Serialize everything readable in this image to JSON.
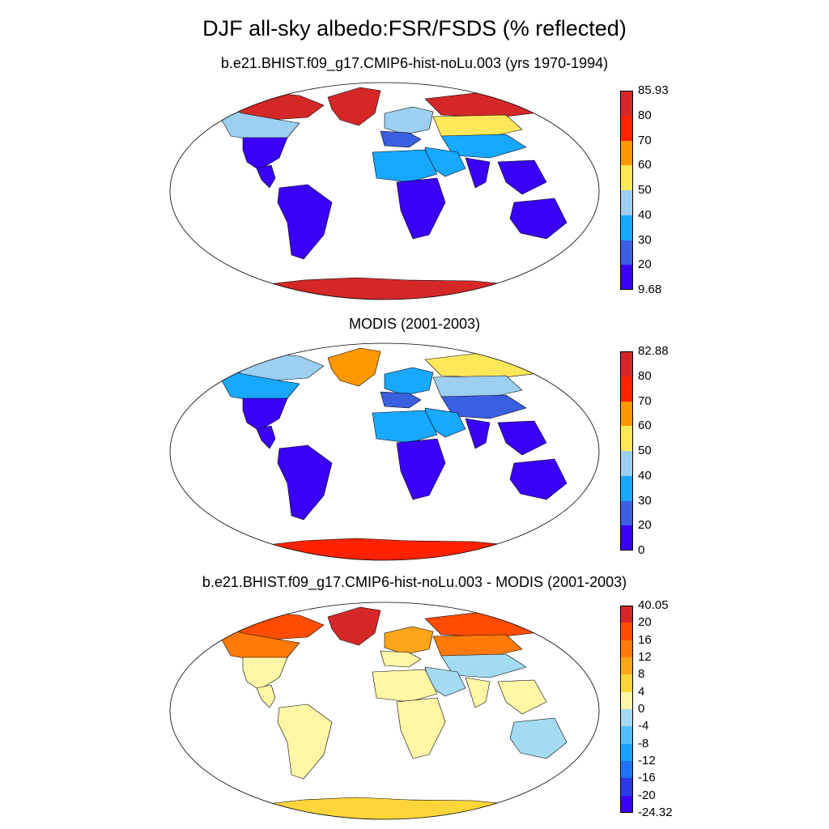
{
  "title": "DJF all-sky albedo:FSR/FSDS (% reflected)",
  "colors": {
    "abs_scale": [
      "#3a00f5",
      "#3a5fe0",
      "#18a8ff",
      "#9ccff0",
      "#ffe75a",
      "#ff9800",
      "#ff2200",
      "#d42828"
    ],
    "diff_scale": [
      "#3a00f5",
      "#2b39e6",
      "#1f74f5",
      "#1ba3ff",
      "#4fbfff",
      "#a3dbf2",
      "#fff6a6",
      "#ffd63a",
      "#ffa51a",
      "#ff7a0a",
      "#ff4c00",
      "#d42828"
    ],
    "land_outline": "#000000",
    "map_border": "#000000"
  },
  "panels": [
    {
      "subtitle": "b.e21.BHIST.f09_g17.CMIP6-hist-noLu.003 (yrs 1970-1994)",
      "scale": "abs_scale",
      "colorbar_labels": [
        "85.93",
        "80",
        "70",
        "60",
        "50",
        "40",
        "30",
        "20",
        "9.68"
      ],
      "regions": {
        "greenland": 7,
        "arctic_canada": 7,
        "north_america_north": 3,
        "north_america_south": 0,
        "central_america": 0,
        "south_america": 0,
        "europe_north": 3,
        "europe_south": 1,
        "russia_north": 7,
        "russia_south": 4,
        "central_asia": 2,
        "middle_east": 2,
        "africa_north": 2,
        "africa_south": 0,
        "india": 0,
        "southeast_asia": 0,
        "australia": 0,
        "antarctica": 7
      }
    },
    {
      "subtitle": "MODIS (2001-2003)",
      "scale": "abs_scale",
      "colorbar_labels": [
        "82.88",
        "80",
        "70",
        "60",
        "50",
        "40",
        "30",
        "20",
        "0"
      ],
      "regions": {
        "greenland": 5,
        "arctic_canada": 3,
        "north_america_north": 2,
        "north_america_south": 0,
        "central_america": 0,
        "south_america": 0,
        "europe_north": 2,
        "europe_south": 1,
        "russia_north": 4,
        "russia_south": 3,
        "central_asia": 1,
        "middle_east": 2,
        "africa_north": 2,
        "africa_south": 0,
        "india": 0,
        "southeast_asia": 0,
        "australia": 0,
        "antarctica": 6
      }
    },
    {
      "subtitle": "b.e21.BHIST.f09_g17.CMIP6-hist-noLu.003 - MODIS (2001-2003)",
      "scale": "diff_scale",
      "colorbar_labels": [
        "40.05",
        "20",
        "16",
        "12",
        "8",
        "4",
        "0",
        "-4",
        "-8",
        "-12",
        "-16",
        "-20",
        "-24.32"
      ],
      "regions": {
        "greenland": 11,
        "arctic_canada": 10,
        "north_america_north": 9,
        "north_america_south": 6,
        "central_america": 6,
        "south_america": 6,
        "europe_north": 8,
        "europe_south": 6,
        "russia_north": 10,
        "russia_south": 9,
        "central_asia": 5,
        "middle_east": 5,
        "africa_north": 6,
        "africa_south": 6,
        "india": 6,
        "southeast_asia": 6,
        "australia": 5,
        "antarctica": 7
      }
    }
  ]
}
